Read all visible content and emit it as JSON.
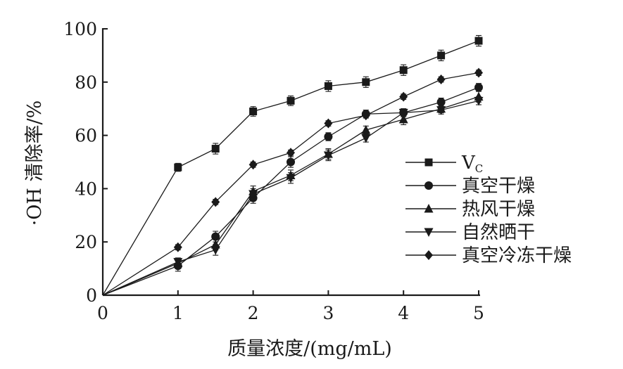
{
  "chart_data": {
    "type": "line",
    "title": "",
    "xlabel": "质量浓度/(mg/mL)",
    "ylabel": "·OH 清除率/%",
    "xlim": [
      0,
      5
    ],
    "ylim": [
      0,
      100
    ],
    "x_ticks": [
      "0",
      "1",
      "2",
      "3",
      "4",
      "5"
    ],
    "y_ticks": [
      "0",
      "20",
      "40",
      "60",
      "80",
      "100"
    ],
    "grid": false,
    "legend_position": "right",
    "x": [
      0,
      1,
      1.5,
      2,
      2.5,
      3,
      3.5,
      4,
      4.5,
      5
    ],
    "series": [
      {
        "name": "V",
        "name_subscript": "C",
        "marker": "square",
        "values": [
          0,
          48,
          55,
          69,
          73,
          78.5,
          80,
          84.5,
          90,
          95.5
        ],
        "errors": [
          0,
          1.5,
          2,
          1.8,
          1.8,
          2,
          2,
          2,
          2,
          2
        ]
      },
      {
        "name": "真空干燥",
        "marker": "circle",
        "values": [
          0,
          11,
          22,
          36.5,
          50,
          59.5,
          68,
          68.5,
          72.5,
          78
        ],
        "errors": [
          0,
          2,
          2,
          2,
          2,
          1.5,
          1.5,
          1.5,
          1.5,
          1.5
        ]
      },
      {
        "name": "热风干燥",
        "marker": "triangle-up",
        "values": [
          0,
          12,
          19,
          39,
          45,
          53,
          62,
          66,
          70,
          74.5
        ],
        "errors": [
          0,
          1.5,
          2,
          2,
          2,
          2,
          1.5,
          2,
          1.5,
          2
        ]
      },
      {
        "name": "自然晒干",
        "marker": "triangle-down",
        "values": [
          0,
          12.5,
          17,
          38,
          44,
          52.5,
          59,
          68.5,
          69.5,
          73
        ],
        "errors": [
          0,
          1.5,
          2,
          2,
          2,
          2,
          1.5,
          1.5,
          1.5,
          1.5
        ]
      },
      {
        "name": "真空冷冻干燥",
        "marker": "diamond",
        "values": [
          0,
          18,
          35,
          49,
          53.5,
          64.5,
          67.5,
          74.5,
          81,
          83.5
        ],
        "errors": [
          0,
          1,
          1,
          1,
          1,
          1,
          1,
          1,
          1,
          1
        ]
      }
    ]
  }
}
